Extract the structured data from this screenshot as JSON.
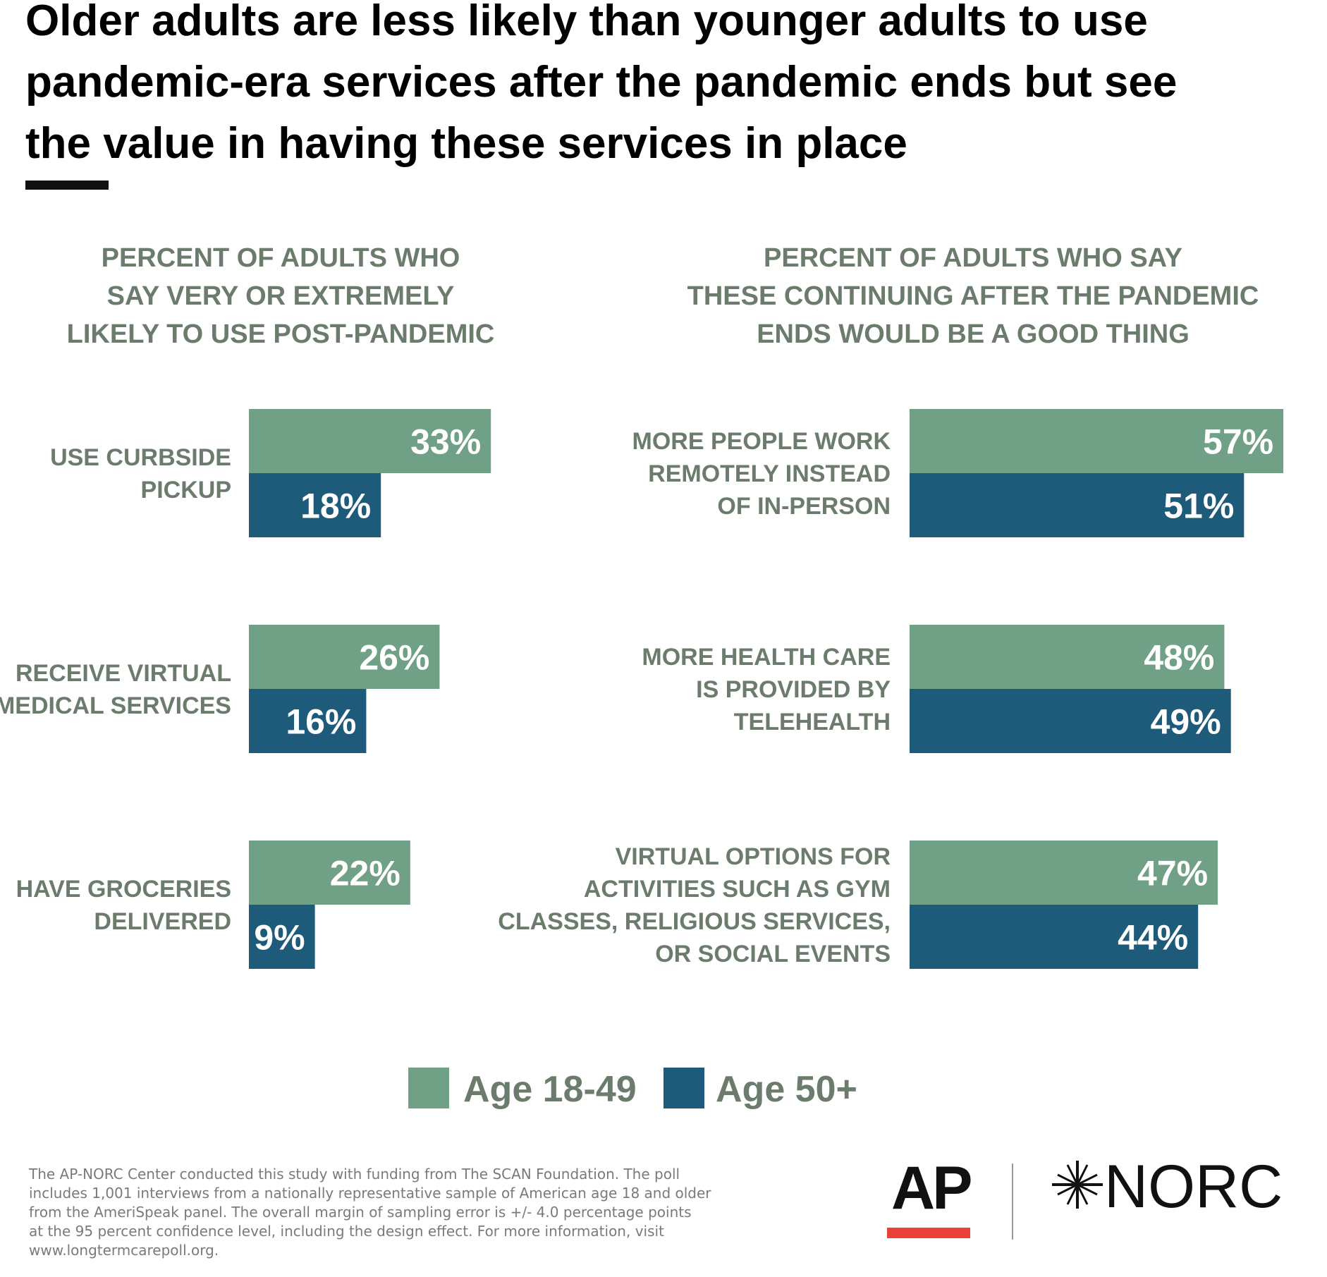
{
  "title_lines": [
    "Older adults are less likely than younger adults to use",
    "pandemic-era services after the pandemic ends but see",
    "the value in having these services in place"
  ],
  "chart_data": [
    {
      "type": "bar",
      "title": [
        "PERCENT OF ADULTS WHO",
        "SAY VERY OR EXTREMELY",
        "LIKELY TO USE POST-PANDEMIC"
      ],
      "categories": [
        [
          "USE CURBSIDE",
          "PICKUP"
        ],
        [
          "RECEIVE VIRTUAL",
          "MEDICAL SERVICES"
        ],
        [
          "HAVE GROCERIES",
          "DELIVERED"
        ]
      ],
      "series": [
        {
          "name": "Age 18-49",
          "color": "#70a086",
          "values": [
            33,
            26,
            22
          ],
          "labels": [
            "33%",
            "26%",
            "22%"
          ]
        },
        {
          "name": "Age 50+",
          "color": "#1e5a7a",
          "values": [
            18,
            16,
            9
          ],
          "labels": [
            "18%",
            "16%",
            "9%"
          ]
        }
      ]
    },
    {
      "type": "bar",
      "title": [
        "PERCENT OF ADULTS WHO SAY",
        "THESE CONTINUING AFTER THE PANDEMIC",
        "ENDS WOULD BE A GOOD THING"
      ],
      "categories": [
        [
          "MORE PEOPLE WORK",
          "REMOTELY INSTEAD",
          "OF IN-PERSON"
        ],
        [
          "MORE HEALTH CARE",
          "IS PROVIDED BY",
          "TELEHEALTH"
        ],
        [
          "VIRTUAL OPTIONS FOR",
          "ACTIVITIES SUCH AS GYM",
          "CLASSES, RELIGIOUS SERVICES,",
          "OR SOCIAL EVENTS"
        ]
      ],
      "series": [
        {
          "name": "Age 18-49",
          "color": "#70a086",
          "values": [
            57,
            48,
            47
          ],
          "labels": [
            "57%",
            "48%",
            "47%"
          ]
        },
        {
          "name": "Age 50+",
          "color": "#1e5a7a",
          "values": [
            51,
            49,
            44
          ],
          "labels": [
            "51%",
            "49%",
            "44%"
          ]
        }
      ]
    }
  ],
  "legend": [
    {
      "label": "Age 18-49",
      "color": "#70a086"
    },
    {
      "label": "Age 50+",
      "color": "#1e5a7a"
    }
  ],
  "footnote_lines": [
    "The AP-NORC Center conducted this study with funding from The SCAN Foundation. The poll",
    "includes 1,001 interviews from a nationally representative sample of American age 18 and older",
    "from the AmeriSpeak panel. The overall margin of sampling error is +/- 4.0 percentage points",
    "at the 95 percent confidence level, including the design effect. For more information, visit",
    "www.longtermcarepoll.org."
  ],
  "logos": {
    "ap": "AP",
    "norc": "NORC",
    "ap_accent": "#e8413a"
  }
}
